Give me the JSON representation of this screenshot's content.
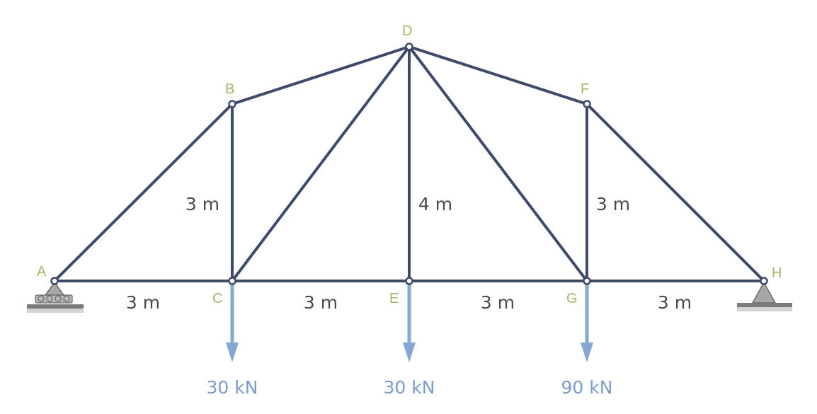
{
  "nodes": [
    {
      "id": "A",
      "label": "A"
    },
    {
      "id": "B",
      "label": "B"
    },
    {
      "id": "C",
      "label": "C"
    },
    {
      "id": "D",
      "label": "D"
    },
    {
      "id": "E",
      "label": "E"
    },
    {
      "id": "F",
      "label": "F"
    },
    {
      "id": "G",
      "label": "G"
    },
    {
      "id": "H",
      "label": "H"
    }
  ],
  "members": [
    [
      "A",
      "B"
    ],
    [
      "B",
      "D"
    ],
    [
      "D",
      "F"
    ],
    [
      "F",
      "H"
    ],
    [
      "A",
      "C"
    ],
    [
      "C",
      "E"
    ],
    [
      "E",
      "G"
    ],
    [
      "G",
      "H"
    ],
    [
      "B",
      "C"
    ],
    [
      "C",
      "D"
    ],
    [
      "D",
      "E"
    ],
    [
      "D",
      "G"
    ],
    [
      "F",
      "G"
    ]
  ],
  "dimensions": {
    "span_AC": "3 m",
    "span_CE": "3 m",
    "span_EG": "3 m",
    "span_GH": "3 m",
    "height_BC": "3 m",
    "height_DE": "4 m",
    "height_FG": "3 m"
  },
  "loads": [
    {
      "at": "C",
      "label": "30 kN",
      "value_kN": 30
    },
    {
      "at": "E",
      "label": "30 kN",
      "value_kN": 30
    },
    {
      "at": "G",
      "label": "90 kN",
      "value_kN": 90
    }
  ],
  "supports": {
    "A": "roller",
    "H": "pin"
  },
  "colors": {
    "member": "#3f4a6b",
    "node_label": "#a7b36a",
    "load": "#86a6d4"
  }
}
